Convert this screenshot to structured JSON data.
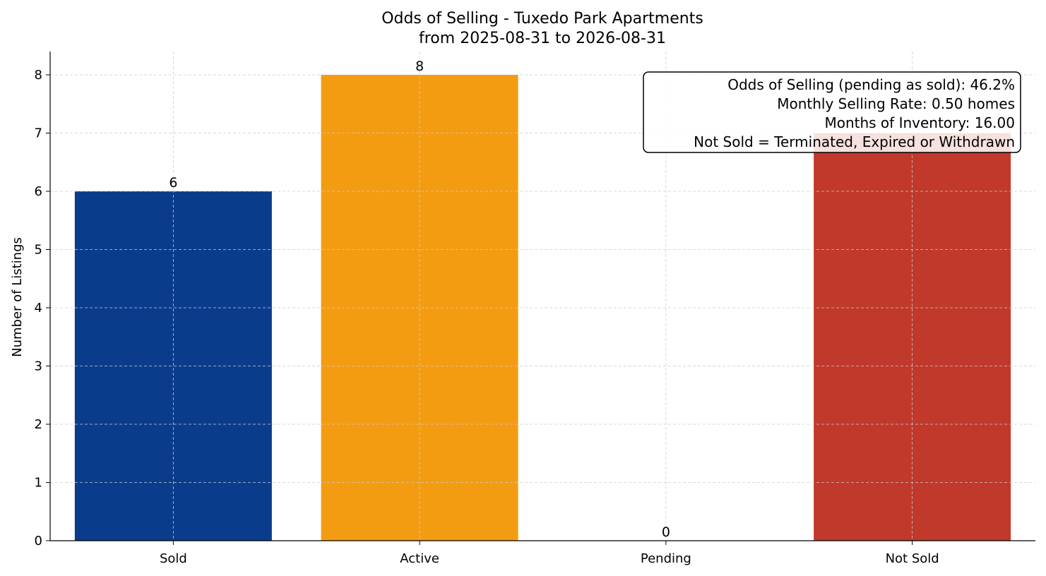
{
  "chart_data": {
    "type": "bar",
    "title": "Odds of Selling - Tuxedo Park Apartments",
    "subtitle": "from 2025-08-31 to 2026-08-31",
    "xlabel": "",
    "ylabel": "Number of Listings",
    "categories": [
      "Sold",
      "Active",
      "Pending",
      "Not Sold"
    ],
    "values": [
      6,
      8,
      0,
      7
    ],
    "data_labels": [
      "6",
      "8",
      "0",
      ""
    ],
    "colors": [
      "#0b3c8c",
      "#f39c12",
      "#2e8b57",
      "#c0392b"
    ],
    "ylim": [
      0,
      8.4
    ],
    "yticks": [
      0,
      1,
      2,
      3,
      4,
      5,
      6,
      7,
      8
    ],
    "grid": true,
    "annotation": {
      "placement": "top-right",
      "lines": [
        "Odds of Selling (pending as sold): 46.2%",
        "Monthly Selling Rate: 0.50 homes",
        "Months of Inventory: 16.00",
        "Not Sold = Terminated, Expired or Withdrawn"
      ]
    }
  }
}
